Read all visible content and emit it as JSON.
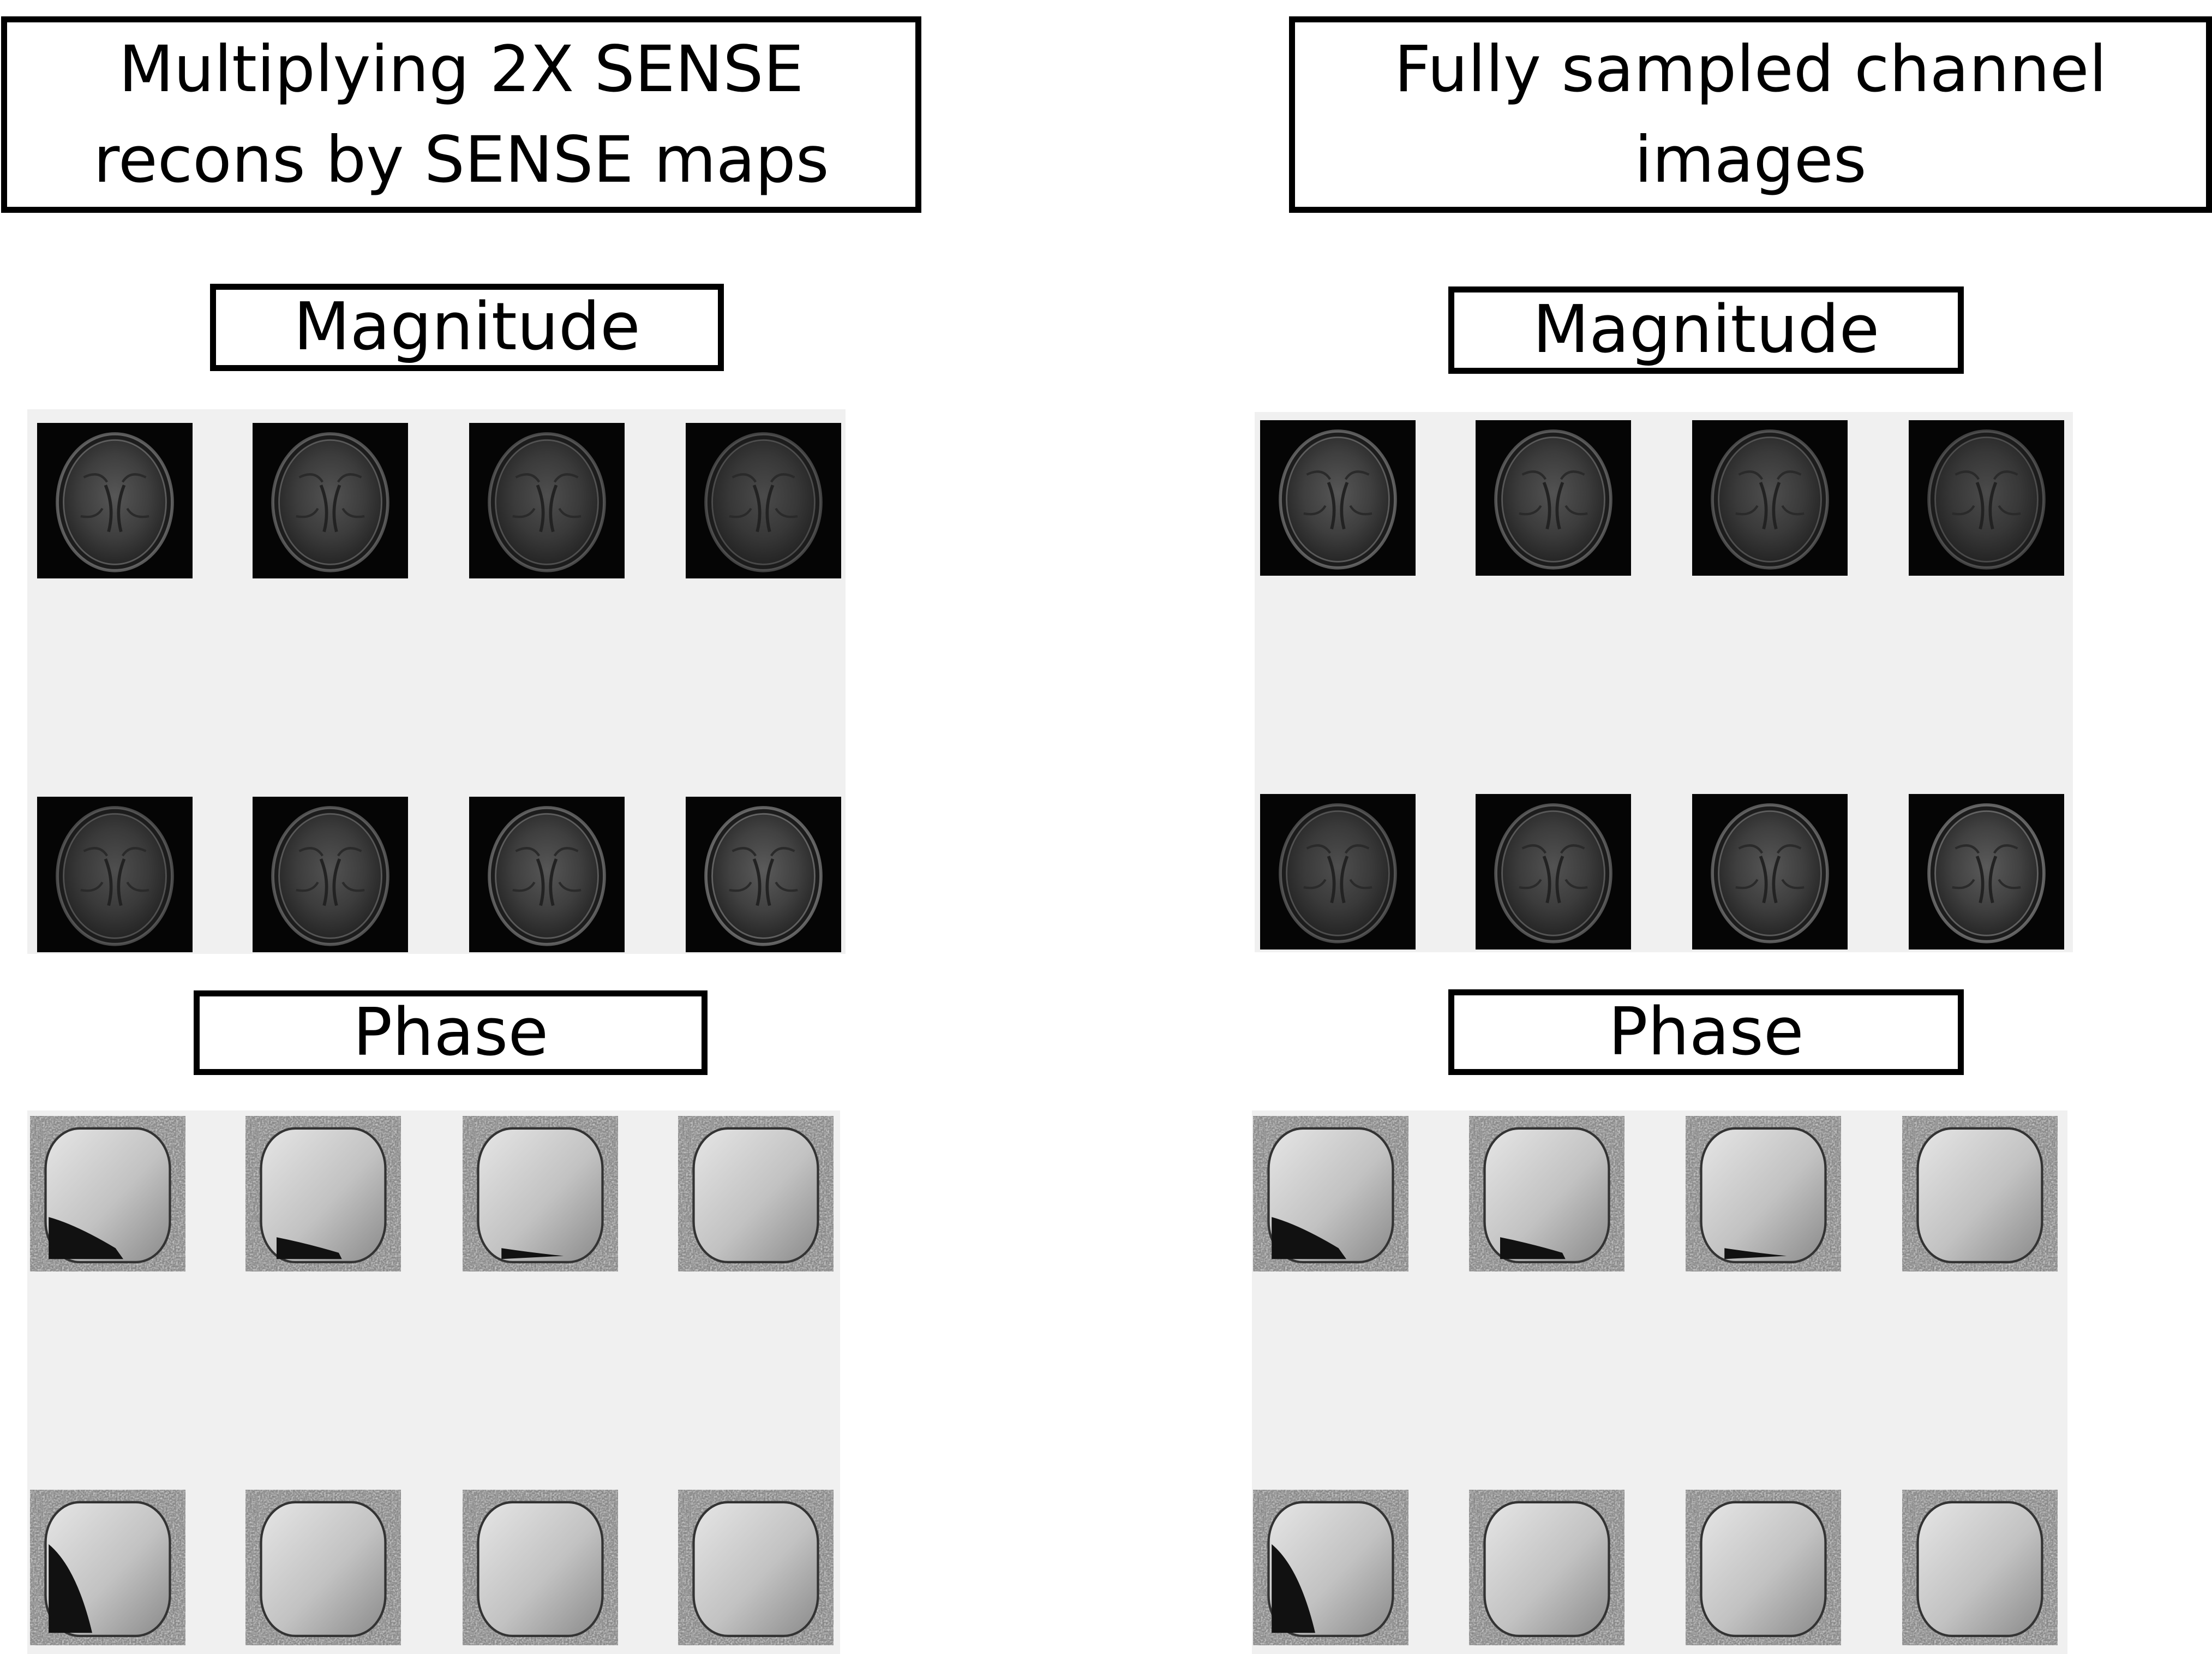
{
  "left_column": {
    "title_line1": "Multiplying 2X SENSE",
    "title_line2": "recons by SENSE maps",
    "magnitude_label": "Magnitude",
    "phase_label": "Phase"
  },
  "right_column": {
    "title_line1": "Fully sampled channel",
    "title_line2": "images",
    "magnitude_label": "Magnitude",
    "phase_label": "Phase"
  }
}
